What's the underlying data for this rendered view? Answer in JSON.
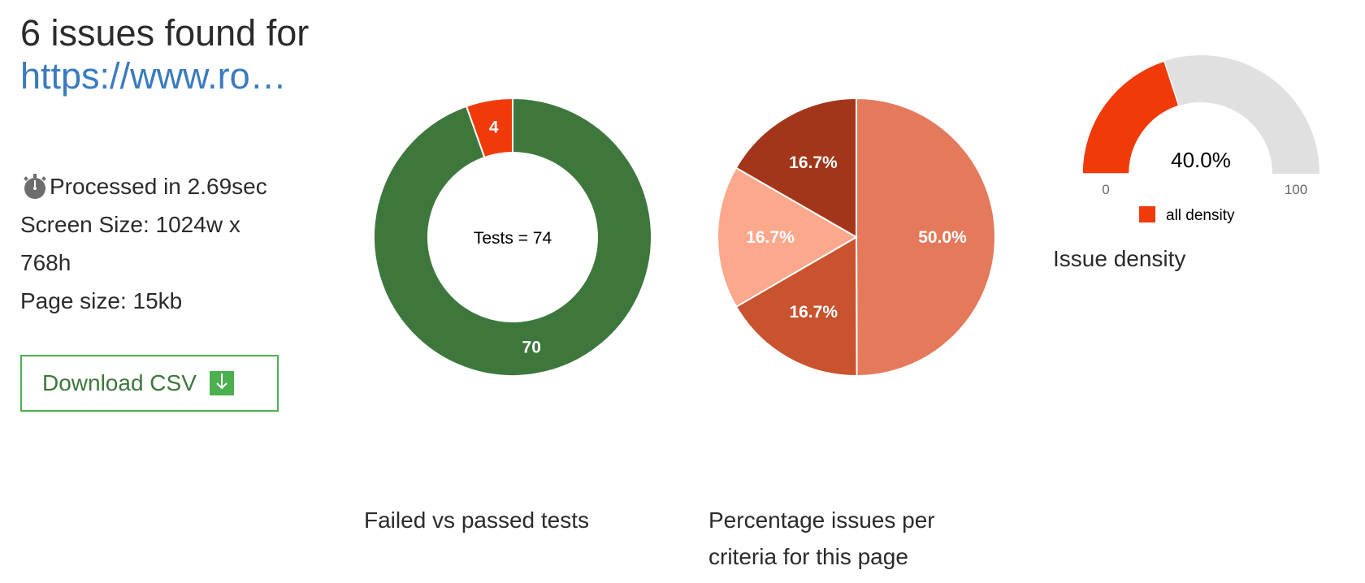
{
  "header": {
    "title_line": "6 issues found for",
    "url_display": "https://www.ro…"
  },
  "info": {
    "processed": "Processed in 2.69sec",
    "screen_size": "Screen Size: 1024w x 768h",
    "page_size": "Page size: 15kb",
    "timer_icon": "stopwatch-icon"
  },
  "download": {
    "label": "Download CSV",
    "icon": "download-icon"
  },
  "chart_data": [
    {
      "type": "pie",
      "variant": "donut",
      "caption": "Failed vs passed tests",
      "center_label": "Tests = 74",
      "categories": [
        "passed",
        "failed"
      ],
      "values": [
        70,
        4
      ],
      "labels": [
        "70",
        "4"
      ],
      "colors": [
        "#3d773c",
        "#f03a0a"
      ]
    },
    {
      "type": "pie",
      "caption": "Percentage issues per criteria for this page",
      "values": [
        50.0,
        16.7,
        16.7,
        16.7
      ],
      "labels": [
        "50.0%",
        "16.7%",
        "16.7%",
        "16.7%"
      ],
      "colors": [
        "#e47a5b",
        "#c9532f",
        "#fca88c",
        "#a3361a"
      ]
    },
    {
      "type": "gauge",
      "caption": "Issue density",
      "value": 40.0,
      "value_label": "40.0%",
      "min": 0,
      "max": 100,
      "min_label": "0",
      "max_label": "100",
      "legend": [
        "all density"
      ],
      "colors": [
        "#f03a0a",
        "#e0e0e0"
      ]
    }
  ]
}
